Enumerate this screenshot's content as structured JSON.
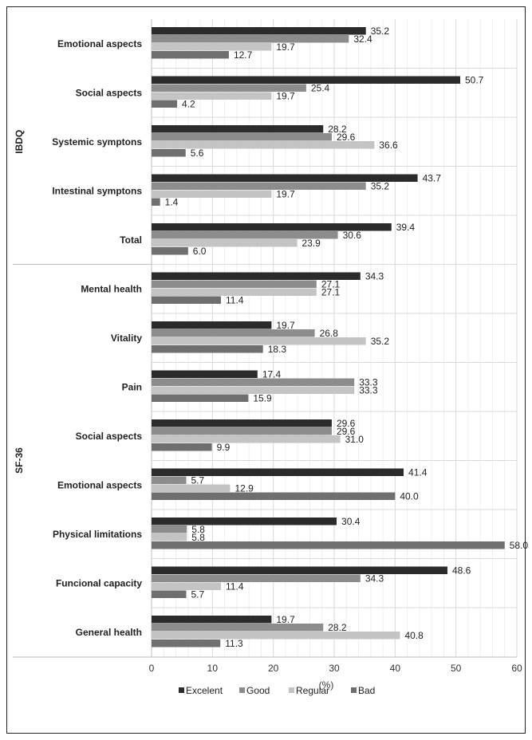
{
  "chart_data": {
    "type": "bar",
    "orientation": "horizontal",
    "xlabel": "(%)",
    "xlim": [
      0,
      60
    ],
    "xticks": [
      0,
      10,
      20,
      30,
      40,
      50,
      60
    ],
    "grid": true,
    "legend_position": "bottom",
    "series": [
      {
        "name": "Excelent",
        "color": "#2b2b2b"
      },
      {
        "name": "Good",
        "color": "#8c8c8c"
      },
      {
        "name": "Regular",
        "color": "#c4c4c4"
      },
      {
        "name": "Bad",
        "color": "#6f6f6f"
      }
    ],
    "groups": [
      {
        "name": "IBDQ",
        "categories": [
          {
            "label": "Emotional aspects",
            "values": [
              35.2,
              32.4,
              19.7,
              12.7
            ],
            "labels": [
              "35.2",
              "32.4",
              "19.7",
              "12.7"
            ]
          },
          {
            "label": "Social aspects",
            "values": [
              50.7,
              25.4,
              19.7,
              4.2
            ],
            "labels": [
              "50.7",
              "25.4",
              "19.7",
              "4.2"
            ]
          },
          {
            "label": "Systemic symptons",
            "values": [
              28.2,
              29.6,
              36.6,
              5.6
            ],
            "labels": [
              "28.2",
              "29.6",
              "36.6",
              "5.6"
            ]
          },
          {
            "label": "Intestinal symptons",
            "values": [
              43.7,
              35.2,
              19.7,
              1.4
            ],
            "labels": [
              "43.7",
              "35.2",
              "19.7",
              "1.4"
            ]
          },
          {
            "label": "Total",
            "values": [
              39.4,
              30.6,
              23.9,
              6.0
            ],
            "labels": [
              "39.4",
              "30.6",
              "23.9",
              "6.0"
            ]
          }
        ]
      },
      {
        "name": "SF-36",
        "categories": [
          {
            "label": "Mental health",
            "values": [
              34.3,
              27.1,
              27.1,
              11.4
            ],
            "labels": [
              "34.3",
              "27.1",
              "27.1",
              "11.4"
            ]
          },
          {
            "label": "Vitality",
            "values": [
              19.7,
              26.8,
              35.2,
              18.3
            ],
            "labels": [
              "19.7",
              "26.8",
              "35.2",
              "18.3"
            ]
          },
          {
            "label": "Pain",
            "values": [
              17.4,
              33.3,
              33.3,
              15.9
            ],
            "labels": [
              "17.4",
              "33.3",
              "33.3",
              "15.9"
            ]
          },
          {
            "label": "Social aspects",
            "values": [
              29.6,
              29.6,
              31.0,
              9.9
            ],
            "labels": [
              "29.6",
              "29.6",
              "31.0",
              "9.9"
            ]
          },
          {
            "label": "Emotional aspects",
            "values": [
              41.4,
              5.7,
              12.9,
              40.0
            ],
            "labels": [
              "41.4",
              "5.7",
              "12.9",
              "40.0"
            ]
          },
          {
            "label": "Physical limitations",
            "values": [
              30.4,
              5.8,
              5.8,
              58.0
            ],
            "labels": [
              "30.4",
              "5.8",
              "5.8",
              "58.0"
            ]
          },
          {
            "label": "Funcional capacity",
            "values": [
              48.6,
              34.3,
              11.4,
              5.7
            ],
            "labels": [
              "48.6",
              "34.3",
              "11.4",
              "5.7"
            ]
          },
          {
            "label": "General health",
            "values": [
              19.7,
              28.2,
              40.8,
              11.3
            ],
            "labels": [
              "19.7",
              "28.2",
              "40.8",
              "11.3"
            ]
          }
        ]
      }
    ]
  }
}
